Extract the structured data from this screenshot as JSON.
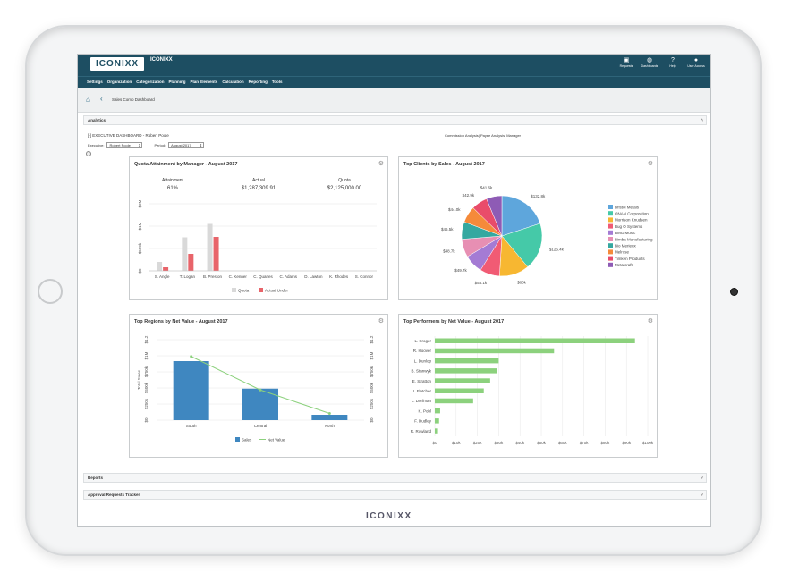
{
  "app": {
    "logo_text": "ICONIXX",
    "brand": "ICONIXX",
    "footer_logo": "ICONIXX"
  },
  "top_icons": [
    {
      "icon": "inbox-icon",
      "label": "Requests"
    },
    {
      "icon": "dashboard-icon",
      "label": "Dashboards"
    },
    {
      "icon": "help-icon",
      "label": "Help"
    },
    {
      "icon": "user-icon",
      "label": "User Access"
    }
  ],
  "menu": [
    "Settings",
    "Organization",
    "Categorization",
    "Planning",
    "Plan Elements",
    "Calculation",
    "Reporting",
    "Tools"
  ],
  "breadcrumb": {
    "title": "Sales Comp Dashboard"
  },
  "sections": {
    "analytics": "Analytics",
    "reports": "Reports",
    "approvals": "Approval Requests Tracker"
  },
  "dashboard": {
    "exec_line": "[-] EXECUTIVE DASHBOARD - Robert Poole",
    "links": "Commission Analysis| Payee Analysis| Manager",
    "executive_label": "Executive:",
    "executive_value": "Robert Poole",
    "period_label": "Period:",
    "period_value": "August 2017"
  },
  "panels": {
    "quota": {
      "title": "Quota Attainment by Manager - August 2017",
      "kpis": [
        {
          "label": "Attainment",
          "value": "61%"
        },
        {
          "label": "Actual",
          "value": "$1,287,309.91"
        },
        {
          "label": "Quota",
          "value": "$2,125,000.00"
        }
      ]
    },
    "clients": {
      "title": "Top Clients by Sales - August 2017"
    },
    "regions": {
      "title": "Top Regions by Net Value - August 2017"
    },
    "performers": {
      "title": "Top Performers by Net Value - August 2017"
    }
  },
  "chart_data": [
    {
      "type": "bar",
      "title": "Quota Attainment by Manager - August 2017",
      "categories": [
        "S. Angle",
        "T. Logan",
        "B. Preston",
        "C. Kenner",
        "C. Quarles",
        "C. Adams",
        "D. Lawton",
        "K. Rhodes",
        "S. Connor"
      ],
      "series": [
        {
          "name": "Quota",
          "color": "#d9d9d9",
          "values": [
            200000,
            750000,
            1050000,
            0,
            0,
            0,
            0,
            0,
            0
          ]
        },
        {
          "name": "Actual Under",
          "color": "#e8646a",
          "values": [
            80000,
            380000,
            760000,
            0,
            0,
            0,
            0,
            0,
            0
          ]
        }
      ],
      "yticks": [
        "$0",
        "$500k",
        "$1M",
        "$2M"
      ],
      "ytick_values": [
        0,
        500000,
        1000000,
        1500000
      ],
      "ylim": [
        0,
        1500000
      ],
      "legend": "bottom"
    },
    {
      "type": "pie",
      "title": "Top Clients by Sales - August 2017",
      "slices": [
        {
          "name": "Bristol Metals",
          "value": 132.8,
          "label": "$132.8k",
          "color": "#5ea6dc"
        },
        {
          "name": "ONAN Corporation",
          "value": 126.4,
          "label": "$126.4k",
          "color": "#45c9a8"
        },
        {
          "name": "Morrison Knudsen",
          "value": 80,
          "label": "$80k",
          "color": "#f7b731"
        },
        {
          "name": "Bug O Systems",
          "value": 53.1,
          "label": "$53.1k",
          "color": "#f15b74"
        },
        {
          "name": "BMG Music",
          "value": 49.7,
          "label": "$49.7k",
          "color": "#a47bd4"
        },
        {
          "name": "Bimba Manufacturing",
          "value": 48.7,
          "label": "$48.7k",
          "color": "#e78fb3"
        },
        {
          "name": "Bio Merieux",
          "value": 46.5,
          "label": "$46.5k",
          "color": "#35a8a0"
        },
        {
          "name": "Melrose",
          "value": 44,
          "label": "$44.0k",
          "color": "#f58a3a"
        },
        {
          "name": "Timken Products",
          "value": 42.9,
          "label": "$42.9k",
          "color": "#e94c6a"
        },
        {
          "name": "Metalcraft",
          "value": 41.6,
          "label": "$41.6k",
          "color": "#8e5bb5"
        }
      ],
      "legend": "right"
    },
    {
      "type": "bar",
      "title": "Top Regions by Net Value - August 2017",
      "categories": [
        "South",
        "Central",
        "North"
      ],
      "series": [
        {
          "name": "Sales",
          "color": "#3f87c0",
          "values": [
            880000,
            470000,
            80000
          ]
        },
        {
          "name": "Net Value",
          "color": "#8cd17d",
          "type": "line",
          "values": [
            950000,
            450000,
            100000
          ]
        }
      ],
      "ylabel": "Total Sales",
      "yticks_left": [
        "$0",
        "$250k",
        "$500k",
        "$750k",
        "$1M",
        "$1.2"
      ],
      "yticks_right": [
        "$0",
        "$250k",
        "$500k",
        "$750k",
        "$1M",
        "$1.2"
      ],
      "ylim": [
        0,
        1200000
      ],
      "legend": "bottom"
    },
    {
      "type": "bar",
      "orientation": "horizontal",
      "title": "Top Performers by Net Value - August 2017",
      "categories": [
        "L. Kroger",
        "R. Hoover",
        "L. Dunlop",
        "B. Stanwyk",
        "E. Stratton",
        "I. Fletcher",
        "L. Dorfman",
        "K. Pohl",
        "F. Dudley",
        "R. Rowland"
      ],
      "values": [
        94000,
        56000,
        30000,
        29000,
        26000,
        23000,
        18000,
        2500,
        2000,
        1500
      ],
      "color": "#8cd17d",
      "xticks": [
        "$0",
        "$10k",
        "$20k",
        "$30k",
        "$40k",
        "$50k",
        "$60k",
        "$70k",
        "$80k",
        "$90k",
        "$100k"
      ],
      "xlim": [
        0,
        100000
      ]
    }
  ]
}
